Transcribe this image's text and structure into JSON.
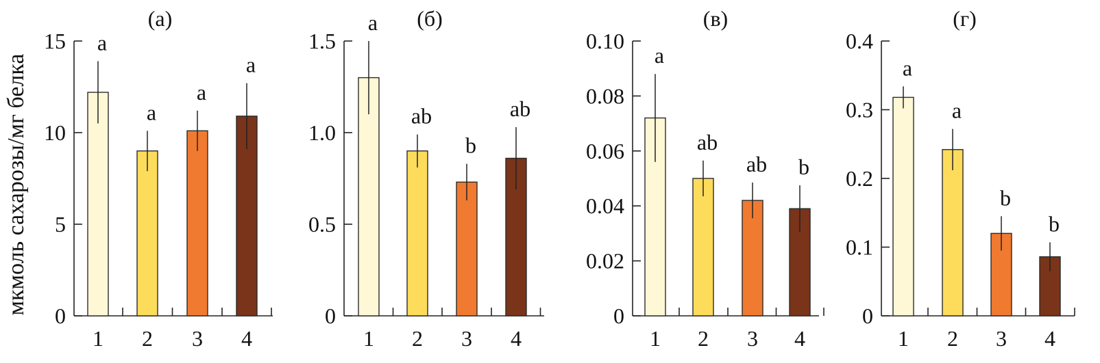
{
  "ylabel": "мкмоль сахарозы/мг белка",
  "colors": {
    "1": "#fff8d6",
    "2": "#fddc5c",
    "3": "#f07a30",
    "4": "#7a3419"
  },
  "chart_data": [
    {
      "type": "bar",
      "title": "(а)",
      "categories": [
        "1",
        "2",
        "3",
        "4"
      ],
      "values": [
        12.2,
        9.0,
        10.1,
        10.9
      ],
      "errors": [
        1.7,
        1.1,
        1.1,
        1.8
      ],
      "letters": [
        "a",
        "a",
        "a",
        "a"
      ],
      "ylim": [
        0,
        15
      ],
      "yticks": [
        0,
        5,
        10,
        15
      ],
      "ytick_labels": [
        "0",
        "5",
        "10",
        "15"
      ]
    },
    {
      "type": "bar",
      "title": "(б)",
      "categories": [
        "1",
        "2",
        "3",
        "4"
      ],
      "values": [
        1.3,
        0.9,
        0.73,
        0.86
      ],
      "errors": [
        0.2,
        0.09,
        0.1,
        0.17
      ],
      "letters": [
        "a",
        "ab",
        "b",
        "ab"
      ],
      "ylim": [
        0,
        1.5
      ],
      "yticks": [
        0,
        0.5,
        1.0,
        1.5
      ],
      "ytick_labels": [
        "0",
        "0.5",
        "1.0",
        "1.5"
      ]
    },
    {
      "type": "bar",
      "title": "(в)",
      "categories": [
        "1",
        "2",
        "3",
        "4"
      ],
      "values": [
        0.072,
        0.05,
        0.042,
        0.039
      ],
      "errors": [
        0.016,
        0.0065,
        0.0065,
        0.0085
      ],
      "letters": [
        "a",
        "ab",
        "ab",
        "b"
      ],
      "ylim": [
        0,
        0.1
      ],
      "yticks": [
        0,
        0.02,
        0.04,
        0.06,
        0.08,
        0.1
      ],
      "ytick_labels": [
        "0",
        "0.02",
        "0.04",
        "0.06",
        "0.08",
        "0.10"
      ]
    },
    {
      "type": "bar",
      "title": "(г)",
      "categories": [
        "1",
        "2",
        "3",
        "4"
      ],
      "values": [
        0.318,
        0.242,
        0.12,
        0.086
      ],
      "errors": [
        0.016,
        0.03,
        0.025,
        0.021
      ],
      "letters": [
        "a",
        "a",
        "b",
        "b"
      ],
      "ylim": [
        0,
        0.4
      ],
      "yticks": [
        0,
        0.1,
        0.2,
        0.3,
        0.4
      ],
      "ytick_labels": [
        "0",
        "0.1",
        "0.2",
        "0.3",
        "0.4"
      ]
    }
  ]
}
